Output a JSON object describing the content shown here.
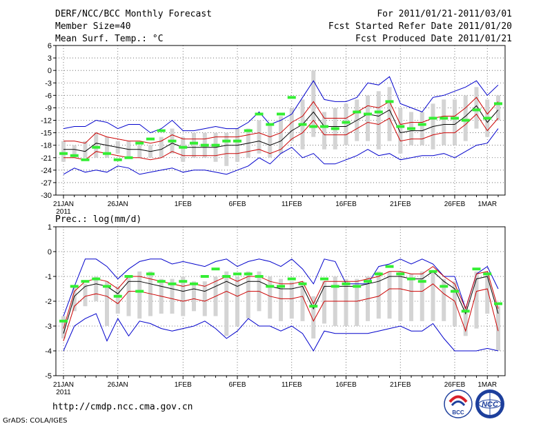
{
  "header": {
    "title": "DERF/NCC/BCC Monthly Forecast",
    "member_size": "Member Size=40",
    "variable1": "Mean Surf. Temp.: °C",
    "period": "For 2011/01/21-2011/03/01",
    "started": "Fcst Started Refer Date 2011/01/20",
    "produced": "Fcst Produced Date 2011/01/21"
  },
  "panel2_label": "Prec.: log(mm/d)",
  "footer": {
    "url": "http://cmdp.ncc.cma.gov.cn",
    "grads": "GrADS: COLA/IGES"
  },
  "logos": {
    "bcc": "BCC",
    "ncc": "NCC"
  },
  "colors": {
    "envelope": "#0000cc",
    "spread": "#cc0000",
    "mean": "#000000",
    "bar": "#d4d4d4",
    "member": "#33ee33"
  },
  "chart_data": [
    {
      "type": "line",
      "title": "Mean Surf. Temp.: °C",
      "ylim": [
        -30,
        6
      ],
      "yticks": [
        6,
        3,
        0,
        -3,
        -6,
        -9,
        -12,
        -15,
        -18,
        -21,
        -24,
        -27,
        -30
      ],
      "xtick_labels": [
        {
          "day": 0,
          "label": "21JAN"
        },
        {
          "day": 5,
          "label": "26JAN"
        },
        {
          "day": 11,
          "label": "1FEB"
        },
        {
          "day": 16,
          "label": "6FEB"
        },
        {
          "day": 21,
          "label": "11FEB"
        },
        {
          "day": 26,
          "label": "16FEB"
        },
        {
          "day": 31,
          "label": "21FEB"
        },
        {
          "day": 36,
          "label": "26FEB"
        },
        {
          "day": 39,
          "label": "1MAR"
        }
      ],
      "year_label": "2011",
      "max": [
        -14,
        -13.5,
        -13.5,
        -12,
        -12.5,
        -14,
        -13,
        -13,
        -15,
        -14,
        -12,
        -14.5,
        -14.5,
        -14,
        -13.5,
        -14,
        -14,
        -12.5,
        -10,
        -13,
        -12,
        -10.5,
        -6.5,
        -2.5,
        -7,
        -7.5,
        -7.5,
        -6.5,
        -3,
        -3.5,
        -1.5,
        -8,
        -9,
        -10,
        -6.5,
        -6,
        -5,
        -4,
        -2.5,
        -6,
        -3.5
      ],
      "upper": [
        -17,
        -17,
        -17.5,
        -15,
        -16,
        -16.5,
        -17,
        -17,
        -17.5,
        -17,
        -15.5,
        -16.5,
        -16.5,
        -16.5,
        -16,
        -16,
        -16,
        -15.5,
        -15,
        -16,
        -15,
        -12.5,
        -11,
        -7.5,
        -11.5,
        -11.5,
        -11.5,
        -10,
        -8.5,
        -9,
        -7.5,
        -13,
        -12.5,
        -12.5,
        -11.5,
        -11,
        -11,
        -9,
        -6.5,
        -10.5,
        -7.5
      ],
      "mean": [
        -19,
        -19,
        -19.5,
        -17.5,
        -18,
        -18.5,
        -19,
        -19,
        -19.5,
        -19,
        -17.5,
        -18.5,
        -18.5,
        -18.5,
        -18.5,
        -18,
        -18,
        -17.5,
        -17,
        -18,
        -17,
        -14.5,
        -13,
        -10,
        -13.5,
        -13.5,
        -13.5,
        -12,
        -10.5,
        -11,
        -9.5,
        -15,
        -14.5,
        -14.5,
        -13.5,
        -13,
        -13,
        -11,
        -8.5,
        -12.5,
        -9.5
      ],
      "lower": [
        -21,
        -21,
        -21.5,
        -19.5,
        -20,
        -20.5,
        -21,
        -21,
        -21.5,
        -21,
        -19.5,
        -20.5,
        -20.5,
        -20.5,
        -20.5,
        -20,
        -20,
        -19.5,
        -19,
        -20,
        -19,
        -16.5,
        -15,
        -12,
        -15.5,
        -15.5,
        -15.5,
        -14,
        -12.5,
        -13,
        -11.5,
        -17,
        -16.5,
        -16.5,
        -15.5,
        -15,
        -15,
        -13,
        -10.5,
        -14.5,
        -11.5
      ],
      "min": [
        -25,
        -23.5,
        -24.5,
        -24,
        -24.5,
        -23,
        -23.5,
        -25,
        -24.5,
        -24,
        -23.5,
        -24.5,
        -24,
        -24,
        -24.5,
        -25,
        -24,
        -23,
        -21,
        -22.5,
        -20,
        -18.5,
        -21,
        -20,
        -22.5,
        -22.5,
        -21.5,
        -20.5,
        -19,
        -20.5,
        -20,
        -21.5,
        -21,
        -20.5,
        -20.5,
        -20,
        -21,
        -19.5,
        -18,
        -17.5,
        -14
      ],
      "bar_top": [
        -17,
        -18,
        -17,
        -15,
        -16,
        -17,
        -17,
        -18,
        -18,
        -16,
        -14,
        -16,
        -15,
        -15,
        -15,
        -15,
        -14,
        -14,
        -12,
        -13,
        -11,
        -9,
        -7,
        0,
        -10,
        -9,
        -8,
        -7,
        -6,
        -5,
        -4,
        -9,
        -10,
        -10,
        -8,
        -7,
        -7,
        -6,
        -4,
        -7,
        -6
      ],
      "bar_bottom": [
        -22,
        -21,
        -21,
        -21,
        -21,
        -20,
        -21,
        -21,
        -21,
        -21,
        -20,
        -22,
        -21,
        -21,
        -22,
        -23,
        -22,
        -21,
        -20,
        -21,
        -20,
        -17,
        -19,
        -16,
        -19,
        -19,
        -18,
        -17,
        -17,
        -19,
        -17,
        -20,
        -18,
        -18,
        -19,
        -18,
        -18,
        -17,
        -14,
        -16,
        -12
      ],
      "member": [
        -20,
        -20.5,
        -21.5,
        -18.5,
        -20,
        -21.5,
        -21,
        -17.5,
        -16.5,
        -14.5,
        -17,
        -18.5,
        -17.5,
        -18,
        -18,
        -17,
        -17,
        -14.5,
        -10.5,
        -13,
        -10.5,
        -6.5,
        -13,
        -13.5,
        -13.5,
        -14,
        -12.5,
        -10,
        -10.5,
        -10,
        -7.5,
        -13.5,
        -14,
        -13,
        -11.5,
        -11.5,
        -11.5,
        -12,
        -9.5,
        -11.5,
        -8
      ]
    },
    {
      "type": "line",
      "title": "Prec.: log(mm/d)",
      "ylim": [
        -5,
        1
      ],
      "yticks": [
        1,
        0,
        -1,
        -2,
        -3,
        -4,
        -5
      ],
      "xtick_labels": [
        {
          "day": 0,
          "label": "21JAN"
        },
        {
          "day": 5,
          "label": "26JAN"
        },
        {
          "day": 11,
          "label": "1FEB"
        },
        {
          "day": 16,
          "label": "6FEB"
        },
        {
          "day": 21,
          "label": "11FEB"
        },
        {
          "day": 26,
          "label": "16FEB"
        },
        {
          "day": 31,
          "label": "21FEB"
        },
        {
          "day": 36,
          "label": "26FEB"
        },
        {
          "day": 39,
          "label": "1MAR"
        }
      ],
      "year_label": "2011",
      "max": [
        -2.6,
        -1.4,
        -0.3,
        -0.3,
        -0.6,
        -1.1,
        -0.7,
        -0.4,
        -0.3,
        -0.3,
        -0.5,
        -0.4,
        -0.5,
        -0.6,
        -0.4,
        -0.3,
        -0.6,
        -0.4,
        -0.3,
        -0.4,
        -0.6,
        -0.3,
        -0.7,
        -1.3,
        -0.3,
        -0.4,
        -1.3,
        -1.3,
        -1.3,
        -0.6,
        -0.5,
        -0.3,
        -0.5,
        -0.3,
        -0.5,
        -1,
        -1,
        -2.3,
        -0.9,
        -0.6,
        -1.5
      ],
      "upper": [
        -3.1,
        -1.6,
        -1.2,
        -1.1,
        -1.2,
        -1.5,
        -1,
        -1,
        -1.1,
        -1.2,
        -1.3,
        -1.4,
        -1.3,
        -1.4,
        -1.2,
        -1,
        -1.2,
        -1,
        -1,
        -1.2,
        -1.3,
        -1.3,
        -1.2,
        -2.1,
        -1.2,
        -1.2,
        -1.2,
        -1.2,
        -1.1,
        -1,
        -0.8,
        -0.8,
        -0.9,
        -0.9,
        -0.6,
        -1,
        -1.3,
        -2.3,
        -0.9,
        -0.8,
        -2.3
      ],
      "mean": [
        -3.3,
        -1.8,
        -1.4,
        -1.3,
        -1.4,
        -1.7,
        -1.2,
        -1.2,
        -1.3,
        -1.4,
        -1.5,
        -1.6,
        -1.5,
        -1.6,
        -1.4,
        -1.2,
        -1.4,
        -1.2,
        -1.2,
        -1.4,
        -1.5,
        -1.5,
        -1.4,
        -2.3,
        -1.4,
        -1.4,
        -1.4,
        -1.4,
        -1.3,
        -1.2,
        -1,
        -1,
        -1.1,
        -1.1,
        -0.8,
        -1.2,
        -1.5,
        -2.5,
        -1.1,
        -1,
        -2.5
      ],
      "lower": [
        -3.6,
        -2.2,
        -1.8,
        -1.7,
        -1.8,
        -2.1,
        -1.6,
        -1.6,
        -1.7,
        -1.8,
        -1.9,
        -2,
        -1.9,
        -2,
        -1.8,
        -1.6,
        -1.8,
        -1.6,
        -1.6,
        -1.8,
        -1.9,
        -1.9,
        -1.8,
        -2.8,
        -2,
        -2,
        -2,
        -2,
        -1.9,
        -1.8,
        -1.5,
        -1.5,
        -1.6,
        -1.6,
        -1.3,
        -1.7,
        -2,
        -3.2,
        -1.6,
        -1.5,
        -3.2
      ],
      "min": [
        -4,
        -3,
        -2.7,
        -2.5,
        -3.6,
        -2.7,
        -3.4,
        -2.8,
        -2.9,
        -3.1,
        -3.2,
        -3.1,
        -3,
        -2.8,
        -3.1,
        -3.5,
        -3.2,
        -2.7,
        -3,
        -3,
        -3.2,
        -3,
        -3.3,
        -4,
        -3.2,
        -3.3,
        -3.3,
        -3.3,
        -3.3,
        -3.2,
        -3.1,
        -3,
        -3.2,
        -3.2,
        -2.9,
        -3.5,
        -4,
        -4,
        -4,
        -3.9,
        -4
      ],
      "bar_top": [
        -2.6,
        -1.4,
        -1.3,
        -1,
        -1.2,
        -1.4,
        -1,
        -0.8,
        -0.8,
        -1.1,
        -1.1,
        -1,
        -1.2,
        -1.2,
        -1,
        -0.8,
        -1,
        -0.8,
        -0.8,
        -1,
        -1.1,
        -1.2,
        -1.2,
        -1.8,
        -1.2,
        -1,
        -1.1,
        -1.1,
        -1,
        -0.8,
        -0.8,
        -0.8,
        -0.9,
        -0.8,
        -0.8,
        -1.1,
        -1.2,
        -2.2,
        -0.8,
        -0.8,
        -2.2
      ],
      "bar_bottom": [
        -3.5,
        -2.4,
        -2.2,
        -2,
        -3,
        -2.5,
        -2.6,
        -2.7,
        -2.6,
        -2.5,
        -2.5,
        -2.6,
        -2.4,
        -2.6,
        -2.6,
        -3.4,
        -3,
        -2.7,
        -2.4,
        -2.7,
        -2.8,
        -2.7,
        -2.8,
        -3.5,
        -2.9,
        -3,
        -3,
        -3,
        -2.8,
        -2.7,
        -2.7,
        -2.8,
        -2.8,
        -2.8,
        -2.8,
        -2.8,
        -3,
        -3.4,
        -3.1,
        -2.5,
        -4
      ],
      "member": [
        -2.8,
        -1.4,
        -1.2,
        -1.1,
        -1.4,
        -1.8,
        -1,
        -1.6,
        -0.9,
        -1.2,
        -1.3,
        -1.2,
        -1.3,
        -1,
        -0.7,
        -1,
        -0.9,
        -0.9,
        -1,
        -1.4,
        -1.4,
        -1.1,
        -1.3,
        -2.2,
        -1.1,
        -1.4,
        -1.3,
        -1.4,
        -1.2,
        -0.9,
        -0.6,
        -0.9,
        -1.1,
        -1.2,
        -0.8,
        -1.4,
        -1.6,
        -2.4,
        -0.7,
        -0.9,
        -2.1
      ]
    }
  ]
}
